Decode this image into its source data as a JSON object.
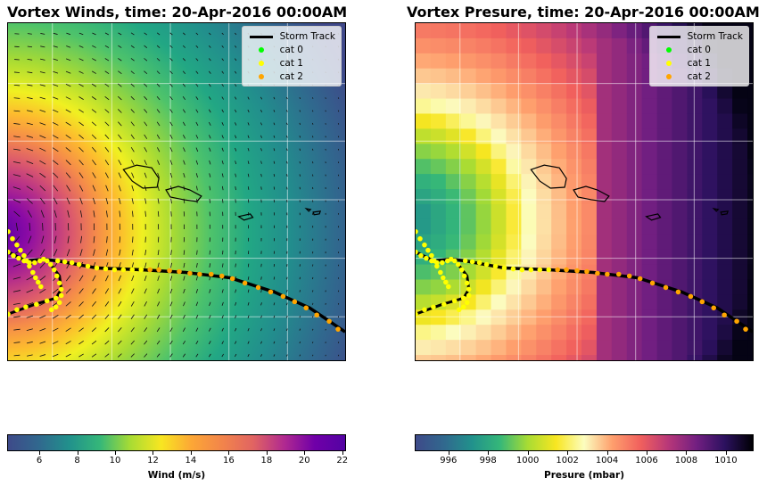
{
  "panels": [
    {
      "title": "Vortex Winds, time: 20-Apr-2016 00:00AM",
      "legend": [
        "Storm Track",
        "cat 0",
        "cat 1",
        "cat 2"
      ],
      "colorbar": {
        "label": "Wind (m/s)",
        "ticks": [
          "6",
          "8",
          "10",
          "12",
          "14",
          "16",
          "18",
          "20",
          "22"
        ],
        "range": [
          4.3,
          22.2
        ],
        "colormap": "plasma_r-viridis"
      }
    },
    {
      "title": "Vortex Presure, time: 20-Apr-2016 00:00AM",
      "legend": [
        "Storm Track",
        "cat 0",
        "cat 1",
        "cat 2"
      ],
      "colorbar": {
        "label": "Presure (mbar)",
        "ticks": [
          "996",
          "998",
          "1000",
          "1002",
          "1004",
          "1006",
          "1008",
          "1010"
        ],
        "range": [
          994.3,
          1011.4
        ],
        "colormap": "magma_r-viridis"
      }
    }
  ],
  "colors": {
    "track": "#000000",
    "cat0": "#00ff00",
    "cat1": "#ffff00",
    "cat2": "#ffa500",
    "grid": "#ffffff"
  }
}
